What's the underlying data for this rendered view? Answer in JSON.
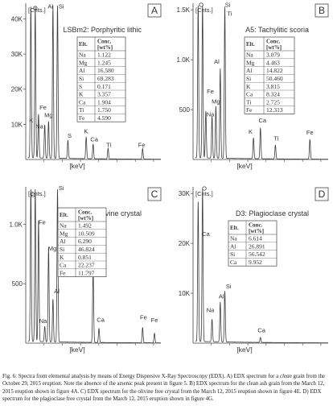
{
  "caption": {
    "parts": [
      {
        "text": "Fig. 6: Spectra from elemental analysis by means of Energy Dispersive X-Ray Spectroscopy (EDX). A) EDX spectrum for a ",
        "italic": false
      },
      {
        "text": "clean",
        "italic": true
      },
      {
        "text": " grain from the October 29, 2015 eruption. Note the absence of the arsenic peak present in figure 5. B) EDX spectrum for the clean ash grain from the March 12, 2015 eruption shown in figure 4A. C) EDX spectrum for the olivine free crystal from the March 12, 2015 eruption shown in figure 4E. D) EDX spectrum for the plagioclase free crystal from the March 12, 2015 eruption shown in figure 4G.",
        "italic": false
      }
    ]
  },
  "colors": {
    "spectrum": "#3c3c3c",
    "axis": "#444444",
    "text": "#333333",
    "panel_bg": "#ffffff"
  },
  "chart_data": [
    {
      "type": "line",
      "letter": "A",
      "title": "LSBm2: Porphyritic lithic",
      "ylabel": "[Cnts.]",
      "xlabel": "[keV]",
      "xlim": [
        0,
        7.4
      ],
      "ylim": [
        0,
        44000
      ],
      "yticks": [
        {
          "v": 10000,
          "label": "10K"
        },
        {
          "v": 20000,
          "label": "20K"
        },
        {
          "v": 30000,
          "label": "30K"
        },
        {
          "v": 40000,
          "label": "40K"
        }
      ],
      "peaks": [
        {
          "x": 0.28,
          "y": 43000,
          "label": "C"
        },
        {
          "x": 0.52,
          "y": 43000,
          "label": "O"
        },
        {
          "x": 0.7,
          "y": 12500,
          "label": "Fe"
        },
        {
          "x": 1.04,
          "y": 9500,
          "label": "Na"
        },
        {
          "x": 1.25,
          "y": 10500,
          "label": "Mg"
        },
        {
          "x": 1.49,
          "y": 43500,
          "label": "Al"
        },
        {
          "x": 1.74,
          "y": 43500,
          "label": "Si"
        },
        {
          "x": 2.31,
          "y": 5200,
          "label": "S"
        },
        {
          "x": 3.31,
          "y": 6200,
          "label": "K"
        },
        {
          "x": 3.69,
          "y": 4200,
          "label": "Ca"
        },
        {
          "x": 4.51,
          "y": 3000,
          "label": "Ti"
        },
        {
          "x": 6.4,
          "y": 3000,
          "label": "Fe"
        }
      ],
      "peak_labels": [
        {
          "text": "O",
          "x": 0.52,
          "y": 42500
        },
        {
          "text": "Al",
          "x": 1.35,
          "y": 43000
        },
        {
          "text": "Si",
          "x": 1.95,
          "y": 43000
        },
        {
          "text": "Fe",
          "x": 0.95,
          "y": 14200
        },
        {
          "text": "Mg",
          "x": 1.25,
          "y": 12000
        },
        {
          "text": "K",
          "x": 0.3,
          "y": 10500
        },
        {
          "text": "Na",
          "x": 0.75,
          "y": 8800
        },
        {
          "text": "S",
          "x": 2.4,
          "y": 6200
        },
        {
          "text": "K",
          "x": 3.3,
          "y": 7500
        },
        {
          "text": "Ca",
          "x": 3.75,
          "y": 5200
        },
        {
          "text": "Ti",
          "x": 4.55,
          "y": 3500
        },
        {
          "text": "Fe",
          "x": 6.35,
          "y": 3500
        }
      ],
      "table": {
        "headers": [
          "Elt.",
          "Conc. [wt%]"
        ],
        "rows": [
          [
            "Na",
            "1.122"
          ],
          [
            "Mg",
            "1.245"
          ],
          [
            "Al",
            "16.580"
          ],
          [
            "Si",
            "69.283"
          ],
          [
            "S",
            "0.171"
          ],
          [
            "K",
            "3.357"
          ],
          [
            "Ca",
            "1.904"
          ],
          [
            "Ti",
            "1.750"
          ],
          [
            "Fe",
            "4.590"
          ]
        ]
      }
    },
    {
      "type": "line",
      "letter": "B",
      "title": "A5: Tachylitic scoria",
      "ylabel": "[Cnts.]",
      "xlabel": "[keV]",
      "xlim": [
        0,
        7.4
      ],
      "ylim": [
        0,
        1550
      ],
      "yticks": [
        {
          "v": 500,
          "label": "500"
        },
        {
          "v": 1000,
          "label": "1.0K"
        },
        {
          "v": 1500,
          "label": "1.5K"
        }
      ],
      "peaks": [
        {
          "x": 0.28,
          "y": 1540,
          "label": "C"
        },
        {
          "x": 0.52,
          "y": 1540,
          "label": "O"
        },
        {
          "x": 0.7,
          "y": 470,
          "label": "Fe"
        },
        {
          "x": 1.04,
          "y": 420,
          "label": "Na"
        },
        {
          "x": 1.25,
          "y": 520,
          "label": "Mg"
        },
        {
          "x": 1.49,
          "y": 900,
          "label": "Al"
        },
        {
          "x": 1.74,
          "y": 1520,
          "label": "Si"
        },
        {
          "x": 3.31,
          "y": 210,
          "label": "K"
        },
        {
          "x": 3.69,
          "y": 310,
          "label": "Ca"
        },
        {
          "x": 4.51,
          "y": 140,
          "label": "Ti"
        },
        {
          "x": 6.4,
          "y": 200,
          "label": "Fe"
        }
      ],
      "peak_labels": [
        {
          "text": "O",
          "x": 0.45,
          "y": 1530
        },
        {
          "text": "Si",
          "x": 1.9,
          "y": 1530
        },
        {
          "text": "Ti",
          "x": 2.0,
          "y": 1440
        },
        {
          "text": "Al",
          "x": 1.3,
          "y": 960
        },
        {
          "text": "Fe",
          "x": 0.95,
          "y": 660
        },
        {
          "text": "Mg",
          "x": 1.25,
          "y": 560
        },
        {
          "text": "Na",
          "x": 0.95,
          "y": 430
        },
        {
          "text": "K",
          "x": 3.15,
          "y": 260
        },
        {
          "text": "Ca",
          "x": 3.8,
          "y": 370
        },
        {
          "text": "Ti",
          "x": 4.55,
          "y": 190
        },
        {
          "text": "Fe",
          "x": 6.4,
          "y": 250
        }
      ],
      "table": {
        "headers": [
          "Elt.",
          "Conc. [wt%]"
        ],
        "rows": [
          [
            "Na",
            "3.079"
          ],
          [
            "Mg",
            "4.463"
          ],
          [
            "Al",
            "14.822"
          ],
          [
            "Si",
            "50.460"
          ],
          [
            "K",
            "3.815"
          ],
          [
            "Ca",
            "8.324"
          ],
          [
            "Ti",
            "2.725"
          ],
          [
            "Fe",
            "12.313"
          ]
        ]
      }
    },
    {
      "type": "line",
      "letter": "C",
      "title": "C1: Olivine crystal",
      "ylabel": "[Cnts.]",
      "xlabel": "[keV]",
      "xlim": [
        0,
        7.4
      ],
      "ylim": [
        0,
        1300
      ],
      "yticks": [
        {
          "v": 500,
          "label": "500"
        },
        {
          "v": 1000,
          "label": "1.0K"
        }
      ],
      "peaks": [
        {
          "x": 0.28,
          "y": 1290,
          "label": "C"
        },
        {
          "x": 0.52,
          "y": 1290,
          "label": "O"
        },
        {
          "x": 0.7,
          "y": 1020,
          "label": "Fe"
        },
        {
          "x": 1.04,
          "y": 130,
          "label": "Na"
        },
        {
          "x": 1.25,
          "y": 790,
          "label": "Mg"
        },
        {
          "x": 1.49,
          "y": 360,
          "label": "Al"
        },
        {
          "x": 1.74,
          "y": 1290,
          "label": "Si"
        },
        {
          "x": 3.69,
          "y": 620,
          "label": "Ca"
        },
        {
          "x": 4.01,
          "y": 120,
          "label": "Ca"
        },
        {
          "x": 6.4,
          "y": 130,
          "label": "Fe"
        },
        {
          "x": 7.05,
          "y": 80,
          "label": "Fe"
        }
      ],
      "peak_labels": [
        {
          "text": "O",
          "x": 0.4,
          "y": 1230
        },
        {
          "text": "Si",
          "x": 1.95,
          "y": 1285
        },
        {
          "text": "Fe",
          "x": 0.9,
          "y": 1000
        },
        {
          "text": "Mg",
          "x": 1.45,
          "y": 780
        },
        {
          "text": "Al",
          "x": 1.7,
          "y": 420
        },
        {
          "text": "Na",
          "x": 0.95,
          "y": 170
        },
        {
          "text": "Ca",
          "x": 3.85,
          "y": 640
        },
        {
          "text": "Ca",
          "x": 4.1,
          "y": 180
        },
        {
          "text": "Fe",
          "x": 6.45,
          "y": 200
        },
        {
          "text": "Fe",
          "x": 7.05,
          "y": 175
        }
      ],
      "table": {
        "headers": [
          "Elt.",
          "Conc. [wt%]"
        ],
        "rows": [
          [
            "Na",
            "1.492"
          ],
          [
            "Mg",
            "10.509"
          ],
          [
            "Al",
            "6.290"
          ],
          [
            "Si",
            "46.824"
          ],
          [
            "K",
            "0.851"
          ],
          [
            "Ca",
            "22.237"
          ],
          [
            "Fe",
            "11.797"
          ]
        ]
      }
    },
    {
      "type": "line",
      "letter": "D",
      "title": "D3: Plagioclase crystal",
      "ylabel": "[Cnts.]",
      "xlabel": "[keV]",
      "xlim": [
        0,
        7.4
      ],
      "ylim": [
        0,
        31000
      ],
      "yticks": [
        {
          "v": 10000,
          "label": "10K"
        },
        {
          "v": 20000,
          "label": "20K"
        },
        {
          "v": 30000,
          "label": "30K"
        }
      ],
      "peaks": [
        {
          "x": 0.28,
          "y": 28000,
          "label": "C"
        },
        {
          "x": 0.52,
          "y": 30500,
          "label": "O"
        },
        {
          "x": 1.04,
          "y": 4500,
          "label": "Na"
        },
        {
          "x": 1.49,
          "y": 8000,
          "label": "Al"
        },
        {
          "x": 1.74,
          "y": 10200,
          "label": "Si"
        },
        {
          "x": 3.69,
          "y": 1000,
          "label": "Ca"
        }
      ],
      "peak_labels": [
        {
          "text": "O",
          "x": 0.62,
          "y": 30600
        },
        {
          "text": "Ca",
          "x": 0.7,
          "y": 21500
        },
        {
          "text": "Si",
          "x": 1.95,
          "y": 11000
        },
        {
          "text": "Al",
          "x": 1.55,
          "y": 9000
        },
        {
          "text": "Na",
          "x": 0.95,
          "y": 6200
        },
        {
          "text": "Ca",
          "x": 3.75,
          "y": 2200
        }
      ],
      "table": {
        "headers": [
          "Elt.",
          "Conc. [wt%]"
        ],
        "rows": [
          [
            "Na",
            "6.614"
          ],
          [
            "Al",
            "26.891"
          ],
          [
            "Si",
            "56.542"
          ],
          [
            "Ca",
            "9.952"
          ]
        ]
      }
    }
  ]
}
